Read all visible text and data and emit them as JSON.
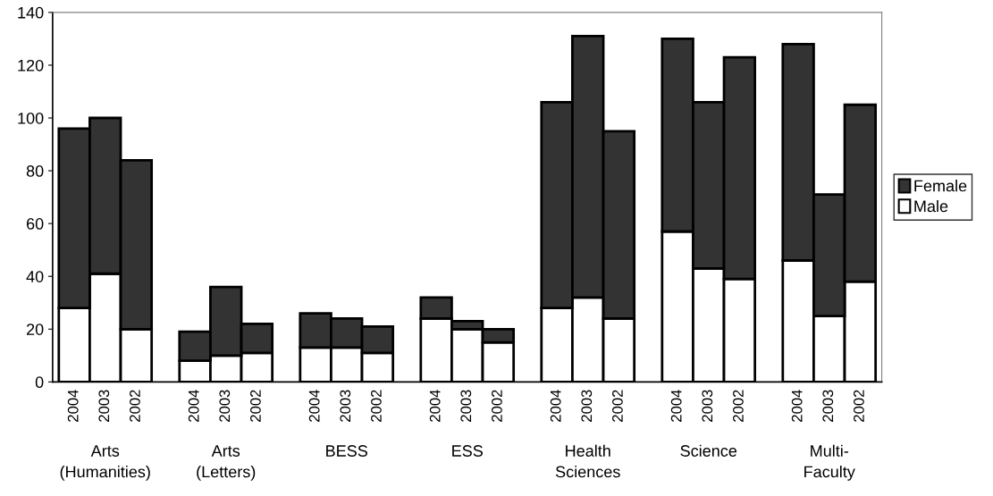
{
  "chart_data": {
    "type": "bar",
    "stacked": true,
    "categories": [
      "2004",
      "2003",
      "2002",
      "2004",
      "2003",
      "2002",
      "2004",
      "2003",
      "2002",
      "2004",
      "2003",
      "2002",
      "2004",
      "2003",
      "2002",
      "2004",
      "2003",
      "2002",
      "2004",
      "2003",
      "2002"
    ],
    "series": [
      {
        "name": "Male",
        "color": "#ffffff",
        "values": [
          28,
          41,
          20,
          8,
          10,
          11,
          13,
          13,
          11,
          24,
          20,
          15,
          28,
          32,
          24,
          57,
          43,
          39,
          46,
          25,
          38
        ]
      },
      {
        "name": "Female",
        "color": "#333333",
        "values": [
          68,
          59,
          64,
          11,
          26,
          11,
          13,
          11,
          10,
          8,
          3,
          5,
          78,
          99,
          71,
          73,
          63,
          84,
          82,
          46,
          67
        ]
      }
    ],
    "annotations": [
      "Arts\n(Humanities)",
      "Arts\n(Letters)",
      "BESS",
      "ESS",
      "Health\nSciences",
      "Science",
      "Multi-\nFaculty"
    ],
    "ylim": [
      0,
      140
    ],
    "yticks": [
      0,
      20,
      40,
      60,
      80,
      100,
      120,
      140
    ],
    "grid": false,
    "legend": "right"
  }
}
